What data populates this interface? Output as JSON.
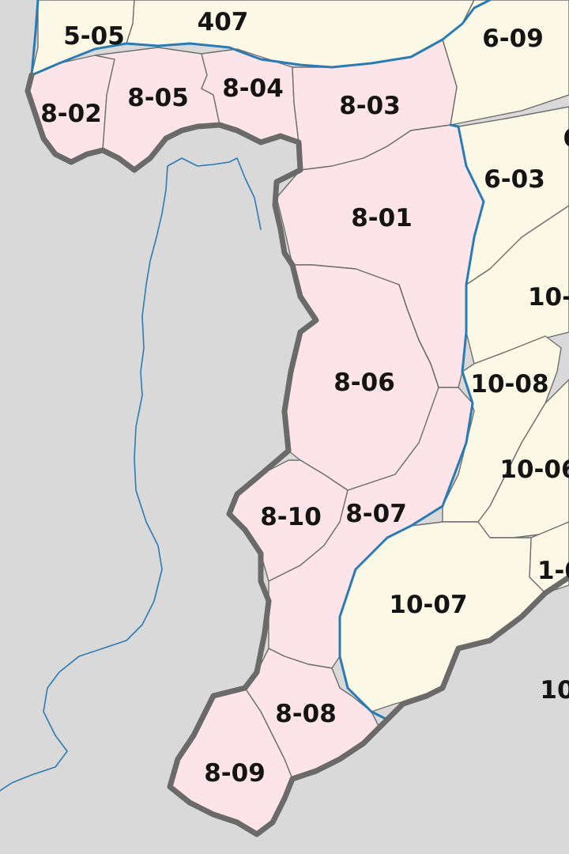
{
  "colors": {
    "highlighted_region": "#fce4e8",
    "other_region": "#fbf9e5",
    "outside_area": "#d9d9d9",
    "water": "#2a7bb4",
    "border": "#6a6a6a"
  },
  "highlighted_regions": {
    "r8_01": "8-01",
    "r8_02": "8-02",
    "r8_03": "8-03",
    "r8_04": "8-04",
    "r8_05": "8-05",
    "r8_06": "8-06",
    "r8_07": "8-07",
    "r8_08": "8-08",
    "r8_09": "8-09",
    "r8_10": "8-10"
  },
  "neighbor_regions": {
    "r5_05": "5-05",
    "r407": "407",
    "r6_09": "6-09",
    "r6_03": "6-03",
    "r6_partial": "6",
    "r10_partial_a": "10-",
    "r10_08": "10-08",
    "r10_06": "10-06",
    "r1_partial": "1-0",
    "r10_07": "10-07",
    "r10_partial_b": "10"
  }
}
